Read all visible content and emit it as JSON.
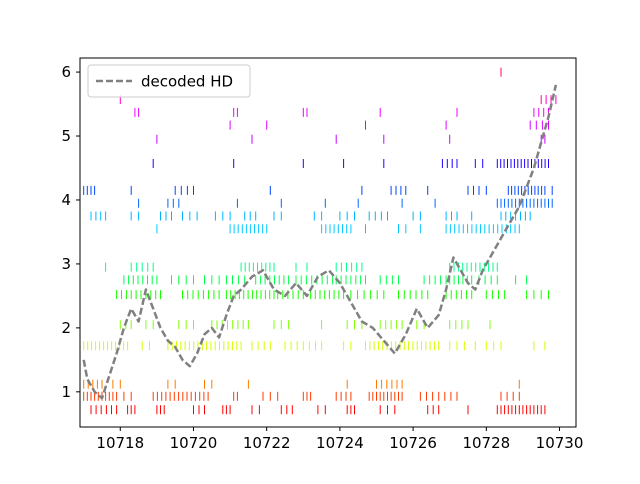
{
  "chart_data": {
    "type": "line",
    "title": "",
    "xlabel": "",
    "ylabel": "",
    "xlim": [
      10716.9,
      10730.45
    ],
    "ylim": [
      0.45,
      6.22
    ],
    "x_ticks": [
      10718,
      10720,
      10722,
      10724,
      10726,
      10728,
      10730
    ],
    "y_ticks": [
      1,
      2,
      3,
      4,
      5,
      6
    ],
    "x_tick_labels": [
      "10718",
      "10720",
      "10722",
      "10724",
      "10726",
      "10728",
      "10730"
    ],
    "y_tick_labels": [
      "1",
      "2",
      "3",
      "4",
      "5",
      "6"
    ],
    "grid": false,
    "legend_position": "top-left",
    "series": [
      {
        "name": "decoded HD",
        "style": "dashed",
        "color": "#808080",
        "x": [
          10717.0,
          10717.1,
          10717.3,
          10717.5,
          10717.7,
          10717.9,
          10718.1,
          10718.3,
          10718.5,
          10718.7,
          10718.9,
          10719.1,
          10719.3,
          10719.5,
          10719.7,
          10719.9,
          10720.1,
          10720.3,
          10720.5,
          10720.7,
          10720.9,
          10721.1,
          10721.3,
          10721.6,
          10721.9,
          10722.2,
          10722.5,
          10722.8,
          10723.1,
          10723.4,
          10723.7,
          10724.0,
          10724.3,
          10724.6,
          10724.9,
          10725.2,
          10725.5,
          10725.8,
          10726.1,
          10726.4,
          10726.7,
          10726.9,
          10727.1,
          10727.3,
          10727.5,
          10727.7,
          10727.9,
          10728.1,
          10728.3,
          10728.5,
          10728.7,
          10728.9,
          10729.1,
          10729.3,
          10729.5,
          10729.7,
          10729.9
        ],
        "values": [
          1.5,
          1.2,
          1.0,
          0.9,
          1.25,
          1.6,
          2.0,
          2.3,
          2.1,
          2.6,
          2.3,
          2.0,
          1.8,
          1.7,
          1.5,
          1.4,
          1.6,
          1.9,
          2.0,
          1.85,
          2.2,
          2.5,
          2.6,
          2.8,
          2.9,
          2.6,
          2.5,
          2.7,
          2.5,
          2.8,
          2.9,
          2.7,
          2.4,
          2.1,
          2.0,
          1.8,
          1.6,
          1.9,
          2.3,
          2.0,
          2.2,
          2.6,
          3.1,
          2.9,
          2.7,
          2.6,
          2.9,
          3.1,
          3.3,
          3.5,
          3.7,
          3.9,
          4.2,
          4.5,
          4.9,
          5.3,
          5.8
        ]
      }
    ],
    "spike_rows": [
      {
        "y": 0.72,
        "color": "#ff0000",
        "spans": [
          [
            10717.2,
            10717.9,
            6
          ],
          [
            10718.2,
            10718.4,
            3
          ],
          [
            10719.0,
            10719.2,
            3
          ],
          [
            10720.0,
            10720.3,
            3
          ],
          [
            10720.8,
            10721.0,
            3
          ],
          [
            10721.6,
            10721.8,
            2
          ],
          [
            10722.4,
            10722.7,
            3
          ],
          [
            10723.4,
            10723.6,
            2
          ],
          [
            10724.2,
            10724.4,
            3
          ],
          [
            10725.1,
            10725.5,
            3
          ],
          [
            10726.4,
            10726.7,
            3
          ],
          [
            10727.5,
            10727.6,
            1
          ],
          [
            10728.3,
            10729.6,
            14
          ]
        ]
      },
      {
        "y": 0.93,
        "color": "#ff3a00",
        "spans": [
          [
            10717.0,
            10717.9,
            10
          ],
          [
            10718.1,
            10718.3,
            2
          ],
          [
            10718.9,
            10720.4,
            14
          ],
          [
            10721.1,
            10721.2,
            2
          ],
          [
            10721.9,
            10722.3,
            3
          ],
          [
            10723.0,
            10723.2,
            3
          ],
          [
            10723.9,
            10724.3,
            4
          ],
          [
            10724.8,
            10725.7,
            10
          ],
          [
            10726.2,
            10727.2,
            7
          ],
          [
            10728.4,
            10728.9,
            4
          ]
        ]
      },
      {
        "y": 1.12,
        "color": "#ff7a00",
        "spans": [
          [
            10717.0,
            10717.5,
            5
          ],
          [
            10717.8,
            10718.0,
            2
          ],
          [
            10719.3,
            10719.5,
            2
          ],
          [
            10720.3,
            10720.5,
            2
          ],
          [
            10721.5,
            10721.6,
            1
          ],
          [
            10724.2,
            10724.3,
            1
          ],
          [
            10725.0,
            10725.7,
            6
          ],
          [
            10728.9,
            10729.0,
            1
          ]
        ]
      },
      {
        "y": 1.72,
        "color": "#d4ff00",
        "spans": [
          [
            10717.0,
            10718.2,
            12
          ],
          [
            10718.6,
            10718.8,
            2
          ],
          [
            10719.3,
            10721.3,
            18
          ],
          [
            10721.6,
            10722.1,
            4
          ],
          [
            10722.5,
            10723.5,
            7
          ],
          [
            10724.1,
            10724.3,
            2
          ],
          [
            10724.7,
            10726.7,
            18
          ],
          [
            10727.0,
            10727.2,
            2
          ],
          [
            10727.4,
            10727.7,
            2
          ],
          [
            10728.0,
            10728.4,
            3
          ],
          [
            10729.3,
            10729.6,
            2
          ]
        ]
      },
      {
        "y": 2.05,
        "color": "#7fff00",
        "spans": [
          [
            10718.0,
            10718.3,
            3
          ],
          [
            10718.7,
            10718.9,
            2
          ],
          [
            10719.6,
            10720.0,
            3
          ],
          [
            10720.5,
            10721.5,
            8
          ],
          [
            10722.2,
            10722.6,
            3
          ],
          [
            10723.5,
            10723.6,
            1
          ],
          [
            10724.2,
            10724.6,
            3
          ],
          [
            10725.1,
            10725.7,
            5
          ],
          [
            10726.1,
            10726.3,
            2
          ],
          [
            10727.0,
            10727.5,
            4
          ],
          [
            10728.1,
            10728.2,
            1
          ]
        ]
      },
      {
        "y": 2.52,
        "color": "#19ff00",
        "spans": [
          [
            10717.9,
            10719.1,
            10
          ],
          [
            10719.7,
            10720.7,
            8
          ],
          [
            10720.9,
            10722.2,
            12
          ],
          [
            10722.3,
            10723.0,
            6
          ],
          [
            10723.2,
            10724.1,
            8
          ],
          [
            10724.3,
            10725.2,
            6
          ],
          [
            10725.6,
            10726.4,
            6
          ],
          [
            10726.9,
            10727.6,
            6
          ],
          [
            10728.0,
            10728.5,
            4
          ],
          [
            10729.1,
            10729.7,
            4
          ]
        ]
      },
      {
        "y": 2.75,
        "color": "#00ff4a",
        "spans": [
          [
            10718.1,
            10719.0,
            8
          ],
          [
            10719.4,
            10720.0,
            4
          ],
          [
            10720.3,
            10720.7,
            3
          ],
          [
            10720.9,
            10721.4,
            4
          ],
          [
            10721.7,
            10722.6,
            8
          ],
          [
            10722.8,
            10723.8,
            8
          ],
          [
            10723.9,
            10724.7,
            7
          ],
          [
            10725.1,
            10725.6,
            4
          ],
          [
            10726.3,
            10726.9,
            5
          ],
          [
            10727.0,
            10727.6,
            6
          ],
          [
            10727.8,
            10728.3,
            4
          ],
          [
            10728.8,
            10729.1,
            2
          ]
        ]
      },
      {
        "y": 2.95,
        "color": "#00ff8a",
        "spans": [
          [
            10717.6,
            10717.7,
            1
          ],
          [
            10718.3,
            10718.9,
            5
          ],
          [
            10721.3,
            10722.2,
            9
          ],
          [
            10722.8,
            10723.1,
            2
          ],
          [
            10723.9,
            10724.6,
            6
          ],
          [
            10727.0,
            10728.3,
            12
          ]
        ]
      },
      {
        "y": 3.55,
        "color": "#00c8ff",
        "spans": [
          [
            10719.0,
            10719.1,
            1
          ],
          [
            10721.0,
            10722.0,
            10
          ],
          [
            10723.5,
            10724.3,
            8
          ],
          [
            10724.7,
            10724.8,
            1
          ],
          [
            10725.6,
            10725.8,
            2
          ],
          [
            10726.2,
            10726.3,
            1
          ],
          [
            10726.9,
            10728.9,
            18
          ]
        ]
      },
      {
        "y": 3.75,
        "color": "#00b4ff",
        "spans": [
          [
            10717.2,
            10717.6,
            4
          ],
          [
            10718.3,
            10718.5,
            2
          ],
          [
            10719.1,
            10719.4,
            3
          ],
          [
            10719.7,
            10720.1,
            3
          ],
          [
            10720.6,
            10721.0,
            3
          ],
          [
            10721.4,
            10721.7,
            3
          ],
          [
            10722.2,
            10722.4,
            2
          ],
          [
            10723.3,
            10723.5,
            2
          ],
          [
            10724.0,
            10724.4,
            3
          ],
          [
            10724.8,
            10725.3,
            4
          ],
          [
            10726.0,
            10726.2,
            2
          ],
          [
            10726.9,
            10727.2,
            3
          ],
          [
            10727.6,
            10727.7,
            1
          ],
          [
            10728.4,
            10729.2,
            7
          ]
        ]
      },
      {
        "y": 3.95,
        "color": "#0064ff",
        "spans": [
          [
            10718.5,
            10718.6,
            1
          ],
          [
            10719.3,
            10719.6,
            3
          ],
          [
            10721.2,
            10721.3,
            1
          ],
          [
            10722.4,
            10722.5,
            1
          ],
          [
            10723.6,
            10723.7,
            1
          ],
          [
            10724.5,
            10724.6,
            1
          ],
          [
            10725.7,
            10725.8,
            1
          ],
          [
            10726.6,
            10726.7,
            1
          ],
          [
            10728.3,
            10729.8,
            16
          ]
        ]
      },
      {
        "y": 4.15,
        "color": "#0046ff",
        "spans": [
          [
            10717.0,
            10717.3,
            4
          ],
          [
            10718.3,
            10718.4,
            1
          ],
          [
            10719.5,
            10720.0,
            4
          ],
          [
            10722.1,
            10722.2,
            1
          ],
          [
            10724.6,
            10724.7,
            1
          ],
          [
            10725.4,
            10725.8,
            4
          ],
          [
            10726.4,
            10726.5,
            1
          ],
          [
            10727.5,
            10727.8,
            3
          ],
          [
            10728.0,
            10728.1,
            1
          ],
          [
            10728.6,
            10729.6,
            12
          ],
          [
            10729.8,
            10729.8,
            1
          ]
        ]
      },
      {
        "y": 4.57,
        "color": "#1e00ff",
        "spans": [
          [
            10718.9,
            10718.9,
            1
          ],
          [
            10721.1,
            10721.1,
            1
          ],
          [
            10723.0,
            10723.0,
            1
          ],
          [
            10724.1,
            10724.1,
            1
          ],
          [
            10725.2,
            10725.2,
            1
          ],
          [
            10726.8,
            10727.2,
            4
          ],
          [
            10727.7,
            10727.9,
            2
          ],
          [
            10728.3,
            10729.7,
            16
          ]
        ]
      },
      {
        "y": 4.95,
        "color": "#c800ff",
        "spans": [
          [
            10719.0,
            10719.0,
            1
          ],
          [
            10721.6,
            10721.6,
            1
          ],
          [
            10723.9,
            10723.9,
            1
          ],
          [
            10725.2,
            10725.2,
            1
          ],
          [
            10727.0,
            10727.0,
            1
          ],
          [
            10729.5,
            10729.6,
            2
          ]
        ]
      },
      {
        "y": 5.17,
        "color": "#dc00ff",
        "spans": [
          [
            10721.0,
            10721.0,
            1
          ],
          [
            10722.0,
            10722.0,
            1
          ],
          [
            10724.7,
            10724.7,
            1
          ],
          [
            10726.9,
            10726.9,
            1
          ],
          [
            10729.2,
            10729.7,
            4
          ]
        ]
      },
      {
        "y": 5.37,
        "color": "#ee00ff",
        "spans": [
          [
            10718.4,
            10718.5,
            2
          ],
          [
            10721.1,
            10721.2,
            2
          ],
          [
            10723.0,
            10723.1,
            2
          ],
          [
            10725.1,
            10725.1,
            1
          ],
          [
            10727.2,
            10727.2,
            1
          ],
          [
            10729.3,
            10729.7,
            4
          ]
        ]
      },
      {
        "y": 5.57,
        "color": "#ff00c8",
        "spans": [
          [
            10718.0,
            10718.0,
            1
          ],
          [
            10729.5,
            10729.9,
            4
          ]
        ]
      },
      {
        "y": 6.0,
        "color": "#ff0064",
        "spans": [
          [
            10728.4,
            10728.4,
            1
          ]
        ]
      }
    ]
  }
}
